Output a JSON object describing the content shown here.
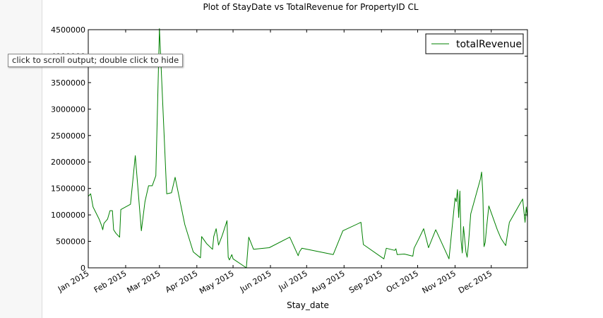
{
  "tooltip": {
    "text": "click to scroll output; double click to hide"
  },
  "colors": {
    "line": "#008000",
    "axes": "#000000",
    "background": "#ffffff"
  },
  "chart_data": {
    "type": "line",
    "title": "Plot of StayDate vs TotalRevenue for PropertyID CL",
    "xlabel": "Stay_date",
    "ylabel": "",
    "x_range": [
      "2015-01-01",
      "2015-12-31"
    ],
    "ylim": [
      0,
      4500000
    ],
    "y_ticks": [
      0,
      500000,
      1000000,
      1500000,
      2000000,
      2500000,
      3000000,
      3500000,
      4000000,
      4500000
    ],
    "x_ticks": [
      {
        "date": "2015-01-01",
        "label": "Jan 2015"
      },
      {
        "date": "2015-02-01",
        "label": "Feb 2015"
      },
      {
        "date": "2015-03-01",
        "label": "Mar 2015"
      },
      {
        "date": "2015-04-01",
        "label": "Apr 2015"
      },
      {
        "date": "2015-05-01",
        "label": "May 2015"
      },
      {
        "date": "2015-06-01",
        "label": "Jun 2015"
      },
      {
        "date": "2015-07-01",
        "label": "Jul 2015"
      },
      {
        "date": "2015-08-01",
        "label": "Aug 2015"
      },
      {
        "date": "2015-09-01",
        "label": "Sep 2015"
      },
      {
        "date": "2015-10-01",
        "label": "Oct 2015"
      },
      {
        "date": "2015-11-01",
        "label": "Nov 2015"
      },
      {
        "date": "2015-12-01",
        "label": "Dec 2015"
      }
    ],
    "grid": false,
    "legend": {
      "position": "top-right"
    },
    "series": [
      {
        "name": "totalRevenue",
        "color": "#008000",
        "x": [
          "2015-01-01",
          "2015-01-03",
          "2015-01-05",
          "2015-01-10",
          "2015-01-12",
          "2015-01-13",
          "2015-01-14",
          "2015-01-17",
          "2015-01-19",
          "2015-01-21",
          "2015-01-22",
          "2015-01-24",
          "2015-01-27",
          "2015-01-28",
          "2015-02-05",
          "2015-02-09",
          "2015-02-14",
          "2015-02-17",
          "2015-02-20",
          "2015-02-23",
          "2015-02-26",
          "2015-03-01",
          "2015-03-07",
          "2015-03-11",
          "2015-03-14",
          "2015-03-22",
          "2015-03-29",
          "2015-04-04",
          "2015-04-05",
          "2015-04-09",
          "2015-04-14",
          "2015-04-15",
          "2015-04-17",
          "2015-04-19",
          "2015-04-22",
          "2015-04-26",
          "2015-04-27",
          "2015-04-28",
          "2015-04-30",
          "2015-05-01",
          "2015-05-12",
          "2015-05-14",
          "2015-05-18",
          "2015-05-31",
          "2015-06-17",
          "2015-06-24",
          "2015-06-25",
          "2015-06-27",
          "2015-07-23",
          "2015-07-31",
          "2015-08-15",
          "2015-08-17",
          "2015-09-03",
          "2015-09-05",
          "2015-09-12",
          "2015-09-13",
          "2015-09-14",
          "2015-09-20",
          "2015-09-27",
          "2015-09-28",
          "2015-10-02",
          "2015-10-06",
          "2015-10-10",
          "2015-10-16",
          "2015-10-27",
          "2015-11-01",
          "2015-11-02",
          "2015-11-03",
          "2015-11-04",
          "2015-11-05",
          "2015-11-06",
          "2015-11-07",
          "2015-11-08",
          "2015-11-09",
          "2015-11-10",
          "2015-11-11",
          "2015-11-12",
          "2015-11-14",
          "2015-11-22",
          "2015-11-23",
          "2015-11-24",
          "2015-11-25",
          "2015-11-26",
          "2015-11-27",
          "2015-11-29",
          "2015-12-06",
          "2015-12-09",
          "2015-12-13",
          "2015-12-16",
          "2015-12-27",
          "2015-12-29",
          "2015-12-30",
          "2015-12-31"
        ],
        "y": [
          1350000,
          1400000,
          1150000,
          920000,
          800000,
          720000,
          840000,
          920000,
          1080000,
          1080000,
          720000,
          650000,
          580000,
          1100000,
          1200000,
          2120000,
          700000,
          1250000,
          1550000,
          1550000,
          1740000,
          4520000,
          1400000,
          1420000,
          1710000,
          820000,
          300000,
          190000,
          590000,
          460000,
          350000,
          590000,
          740000,
          430000,
          610000,
          890000,
          200000,
          150000,
          250000,
          170000,
          0,
          580000,
          350000,
          380000,
          580000,
          230000,
          300000,
          370000,
          250000,
          700000,
          860000,
          440000,
          170000,
          370000,
          330000,
          360000,
          250000,
          260000,
          220000,
          370000,
          550000,
          740000,
          380000,
          720000,
          170000,
          1320000,
          1250000,
          1480000,
          950000,
          1450000,
          520000,
          280000,
          780000,
          550000,
          300000,
          200000,
          420000,
          1020000,
          1680000,
          1810000,
          1400000,
          400000,
          480000,
          730000,
          1170000,
          720000,
          560000,
          420000,
          860000,
          1300000,
          860000,
          1150000,
          950000
        ]
      }
    ]
  }
}
